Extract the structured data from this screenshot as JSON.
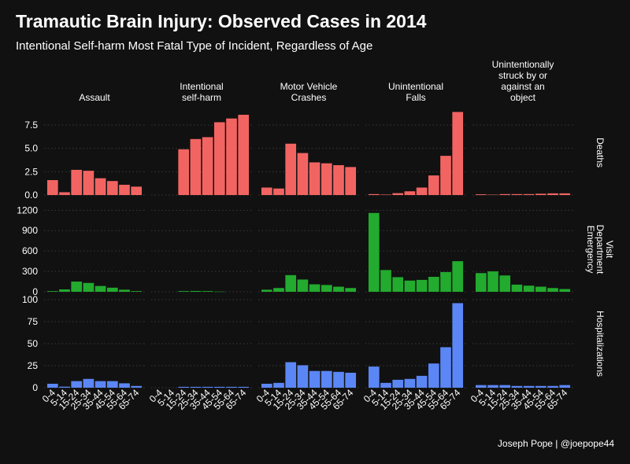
{
  "header": {
    "title": "Tramautic Brain Injury: Observed Cases in 2014",
    "subtitle": "Intentional Self-harm Most Fatal Type of Incident, Regardless of Age",
    "caption": "Joseph Pope | @joepope44"
  },
  "colors": {
    "background": "#111111",
    "grid": "#3a3a3a",
    "text": "#ffffff",
    "Deaths": "#f26462",
    "Emergency Department Visit": "#22ab2e",
    "Hospitalizations": "#5b86f5"
  },
  "chart_data": {
    "type": "bar",
    "layout": "faceted grid (rows = outcome, columns = injury type)",
    "grid": "horizontal major lines only, dotted",
    "categories": [
      "0-4",
      "5-14",
      "15-24",
      "25-34",
      "35-44",
      "45-54",
      "55-64",
      "65-74"
    ],
    "columns": [
      {
        "key": "assault",
        "label_lines": [
          "Assault"
        ]
      },
      {
        "key": "self_harm",
        "label_lines": [
          "Intentional",
          "self-harm"
        ]
      },
      {
        "key": "motor",
        "label_lines": [
          "Motor Vehicle",
          "Crashes"
        ]
      },
      {
        "key": "falls",
        "label_lines": [
          "Unintentional",
          "Falls"
        ]
      },
      {
        "key": "struck",
        "label_lines": [
          "Unintentionally",
          "struck by or",
          "against an",
          "object"
        ]
      }
    ],
    "rows": [
      {
        "key": "Deaths",
        "label_lines": [
          "Deaths"
        ],
        "ylim": [
          0,
          9.1
        ],
        "yticks": [
          0,
          2.5,
          5,
          7.5
        ],
        "ytick_labels": [
          "0.0",
          "2.5",
          "5.0",
          "7.5"
        ],
        "values": {
          "assault": [
            1.6,
            0.3,
            2.7,
            2.6,
            1.8,
            1.5,
            1.1,
            0.9
          ],
          "self_harm": [
            0,
            0,
            4.9,
            6.0,
            6.2,
            7.8,
            8.2,
            8.6
          ],
          "motor": [
            0.8,
            0.7,
            5.5,
            4.5,
            3.5,
            3.4,
            3.2,
            3.0
          ],
          "falls": [
            0.1,
            0.05,
            0.2,
            0.4,
            0.8,
            2.1,
            4.2,
            8.9
          ],
          "struck": [
            0.08,
            0.04,
            0.1,
            0.1,
            0.1,
            0.14,
            0.18,
            0.18
          ]
        }
      },
      {
        "key": "Emergency Department Visit",
        "label_lines": [
          "Emergency",
          "Department",
          "Visit"
        ],
        "ylim": [
          0,
          1250
        ],
        "yticks": [
          0,
          300,
          600,
          900,
          1200
        ],
        "ytick_labels": [
          "0",
          "300",
          "600",
          "900",
          "1200"
        ],
        "values": {
          "assault": [
            10,
            35,
            150,
            130,
            85,
            60,
            30,
            10
          ],
          "self_harm": [
            0,
            0,
            10,
            12,
            10,
            3,
            0,
            0
          ],
          "motor": [
            30,
            55,
            245,
            180,
            110,
            100,
            75,
            55
          ],
          "falls": [
            1160,
            320,
            215,
            165,
            175,
            220,
            290,
            450
          ],
          "struck": [
            275,
            300,
            240,
            105,
            90,
            75,
            55,
            40
          ]
        }
      },
      {
        "key": "Hospitalizations",
        "label_lines": [
          "Hospitalizations"
        ],
        "ylim": [
          0,
          100
        ],
        "yticks": [
          0,
          25,
          50,
          75,
          100
        ],
        "ytick_labels": [
          "0",
          "25",
          "50",
          "75",
          "100"
        ],
        "values": {
          "assault": [
            4.5,
            1.2,
            7.5,
            10,
            7.5,
            7.5,
            5,
            2
          ],
          "self_harm": [
            0,
            0,
            1,
            1,
            1,
            1,
            1,
            1
          ],
          "motor": [
            4.5,
            5.5,
            29,
            25.5,
            19,
            19,
            18,
            17
          ],
          "falls": [
            24,
            5.5,
            9,
            10,
            13.5,
            27.5,
            46,
            96
          ],
          "struck": [
            3,
            3,
            3,
            2,
            2,
            2,
            2,
            3
          ]
        }
      }
    ]
  }
}
